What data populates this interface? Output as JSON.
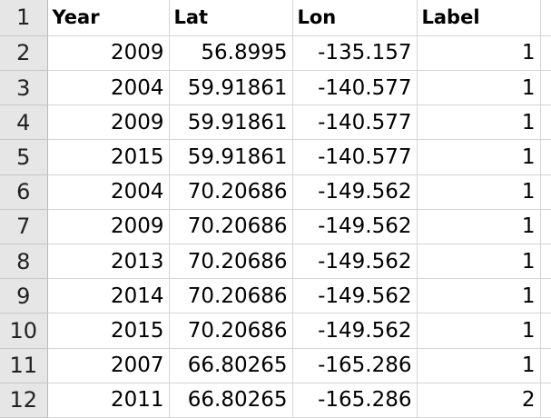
{
  "sheet": {
    "row_numbers": [
      "1",
      "2",
      "3",
      "4",
      "5",
      "6",
      "7",
      "8",
      "9",
      "10",
      "11",
      "12"
    ],
    "headers": [
      "Year",
      "Lat",
      "Lon",
      "Label"
    ],
    "rows": [
      [
        "2009",
        "56.8995",
        "-135.157",
        "1"
      ],
      [
        "2004",
        "59.91861",
        "-140.577",
        "1"
      ],
      [
        "2009",
        "59.91861",
        "-140.577",
        "1"
      ],
      [
        "2015",
        "59.91861",
        "-140.577",
        "1"
      ],
      [
        "2004",
        "70.20686",
        "-149.562",
        "1"
      ],
      [
        "2009",
        "70.20686",
        "-149.562",
        "1"
      ],
      [
        "2013",
        "70.20686",
        "-149.562",
        "1"
      ],
      [
        "2014",
        "70.20686",
        "-149.562",
        "1"
      ],
      [
        "2015",
        "70.20686",
        "-149.562",
        "1"
      ],
      [
        "2007",
        "66.80265",
        "-165.286",
        "1"
      ],
      [
        "2011",
        "66.80265",
        "-165.286",
        "2"
      ]
    ]
  }
}
